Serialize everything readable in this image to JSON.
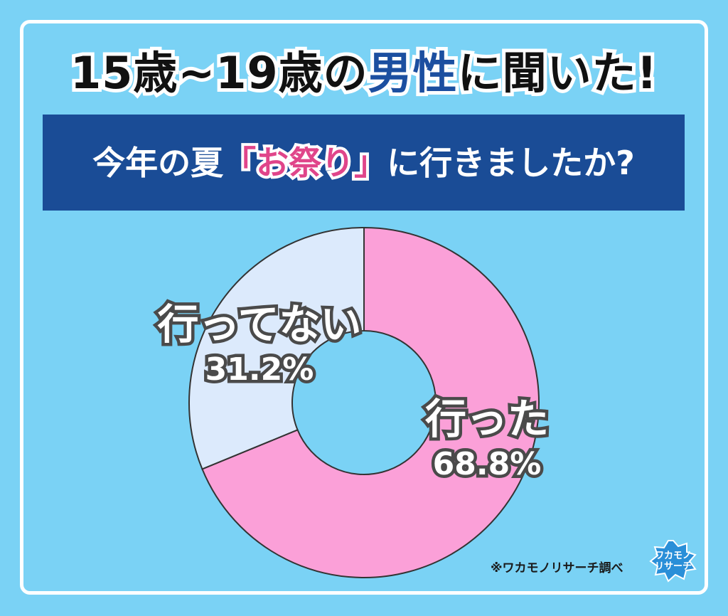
{
  "title": {
    "part1": "15歳~19歳の",
    "accent": "男性",
    "part2": "に聞いた!"
  },
  "question": {
    "before": "今年の夏",
    "highlight": "「お祭り」",
    "after": "に行きましたか?"
  },
  "chart_data": {
    "type": "pie",
    "donut": true,
    "slices": [
      {
        "label": "行った",
        "value": 68.8,
        "value_label": "68.8%",
        "color": "#fba0d8"
      },
      {
        "label": "行ってない",
        "value": 31.2,
        "value_label": "31.2%",
        "color": "#dceafc"
      }
    ]
  },
  "colors": {
    "background": "#7ad2f5",
    "question_box": "#1a4c96",
    "accent_blue": "#1c4fa0",
    "highlight_pink": "#e0458a",
    "stroke": "#333333"
  },
  "credit": "※ワカモノリサーチ調べ",
  "logo": {
    "icon": "wakamono-research-logo",
    "line1": "ワカモノ",
    "line2": "リサーチ"
  }
}
